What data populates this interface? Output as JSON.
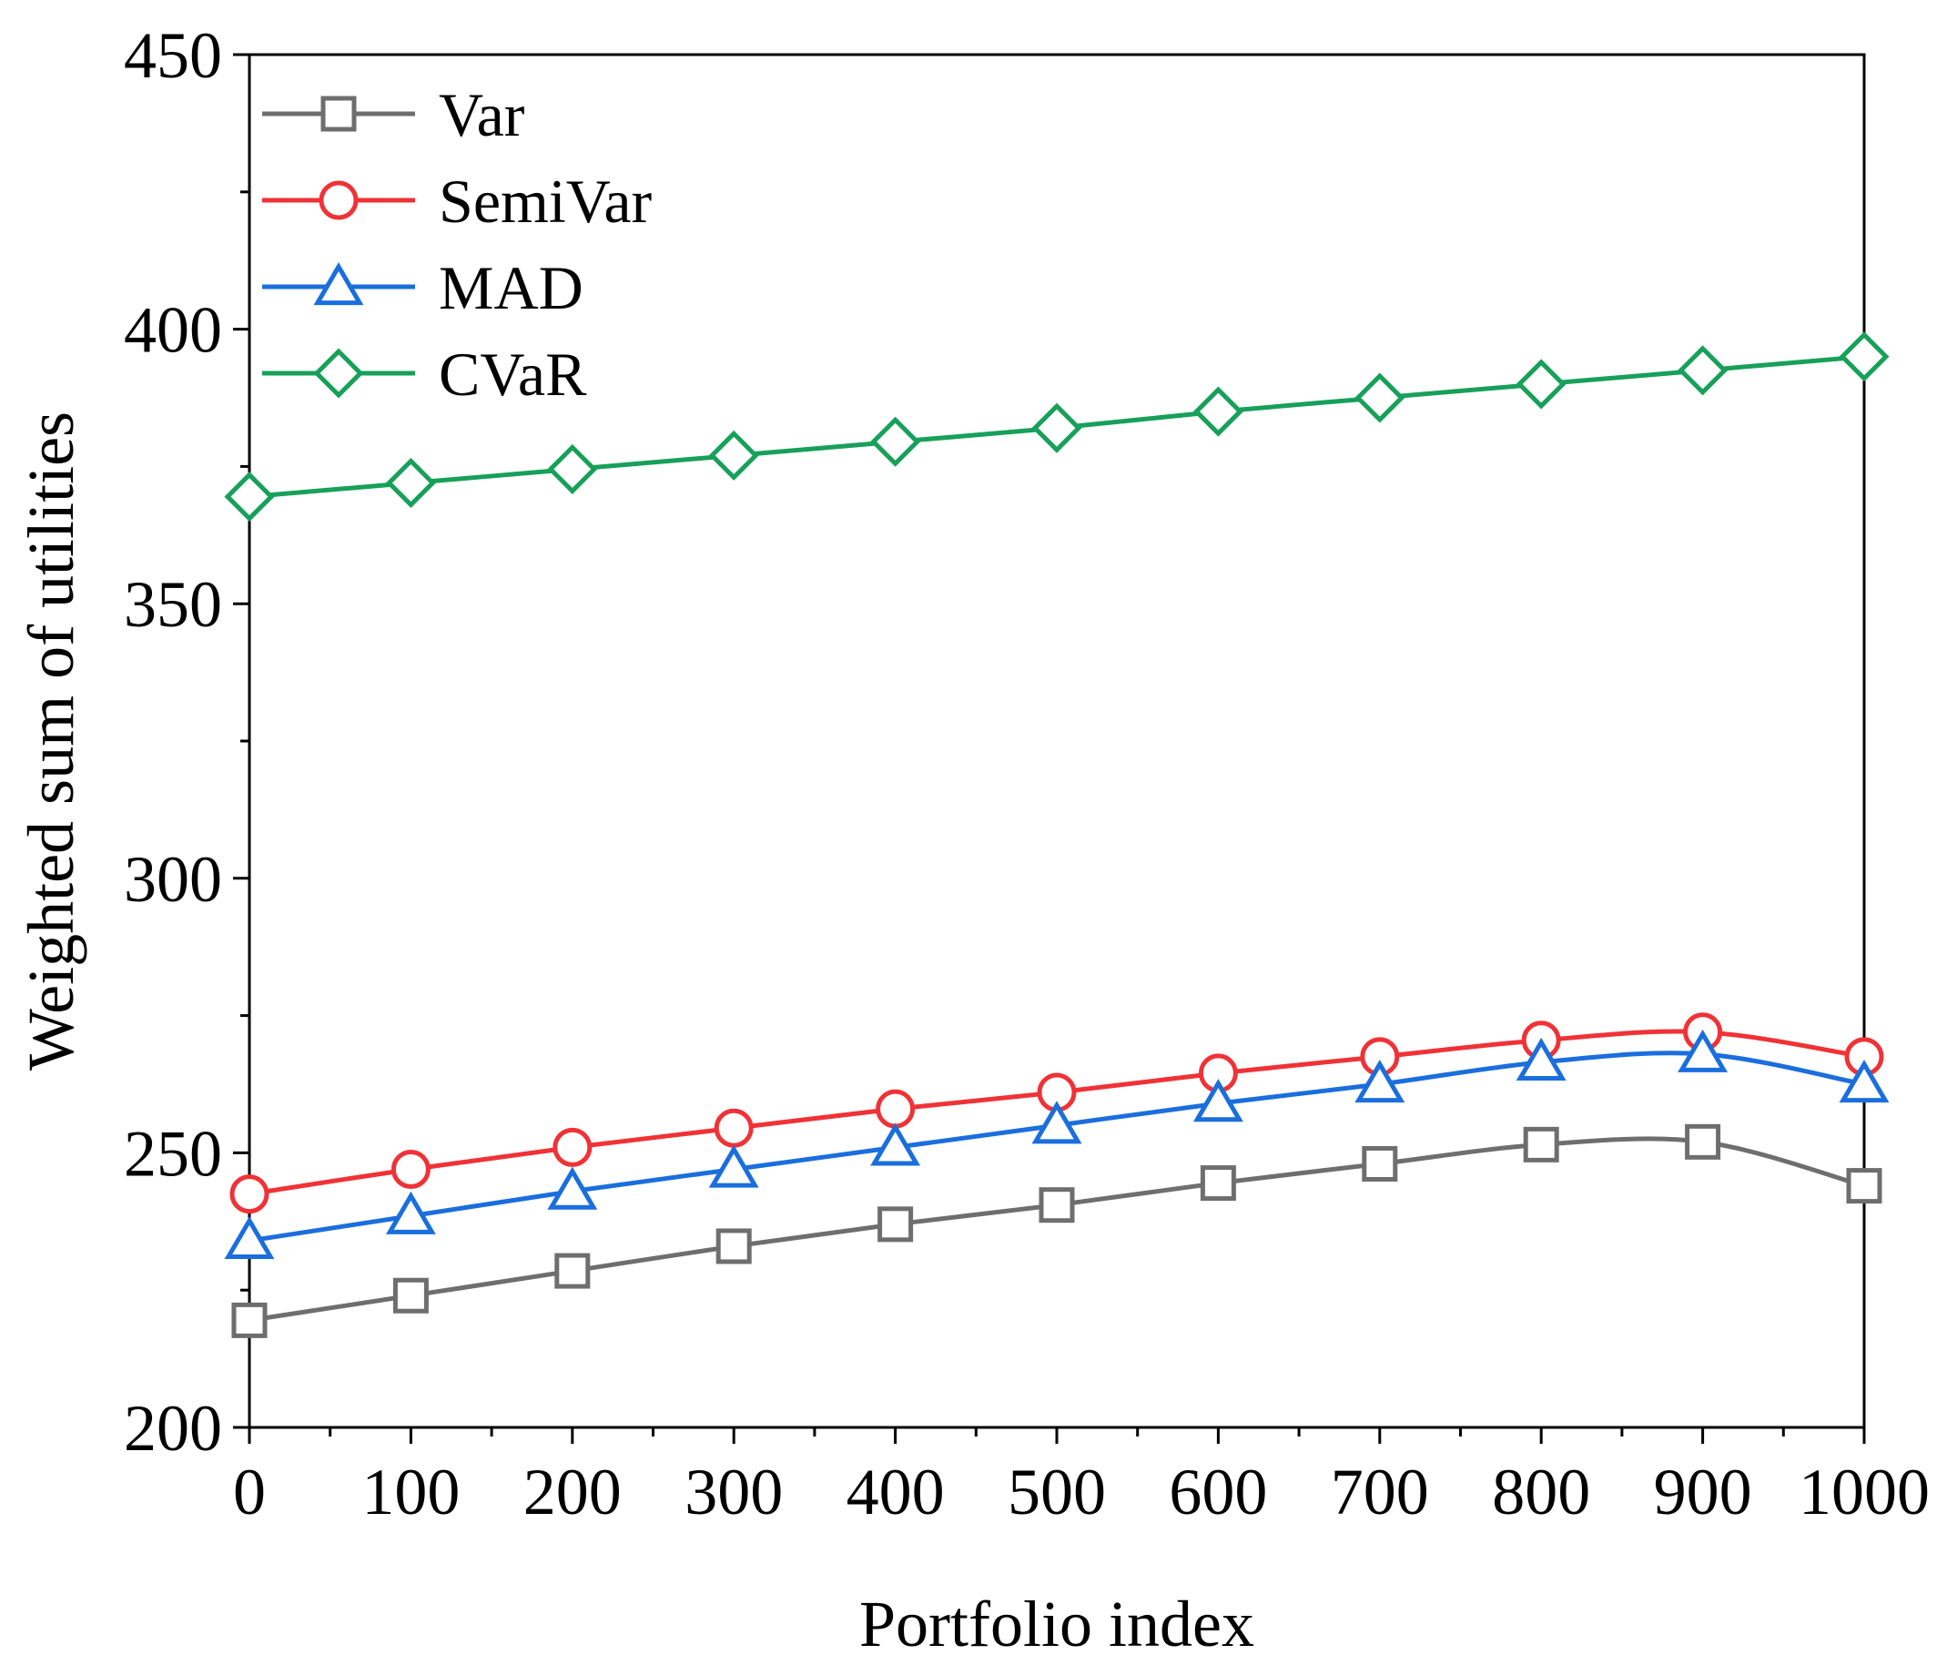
{
  "chart_data": {
    "type": "line",
    "title": "",
    "xlabel": "Portfolio index",
    "ylabel": "Weighted sum of utilities",
    "xlim": [
      0,
      1000
    ],
    "ylim": [
      200,
      450
    ],
    "x_ticks": [
      "0",
      "100",
      "200",
      "300",
      "400",
      "500",
      "600",
      "700",
      "800",
      "900",
      "1000"
    ],
    "y_ticks": [
      "200",
      "250",
      "300",
      "350",
      "400",
      "450"
    ],
    "x": [
      0,
      100,
      200,
      300,
      400,
      500,
      600,
      700,
      800,
      900,
      1000
    ],
    "legend_position": "top-left",
    "grid": false,
    "series": [
      {
        "name": "Var",
        "color": "#6e6e6e",
        "marker": "square",
        "values": [
          219.5,
          224,
          228.5,
          233,
          237,
          240.5,
          244.5,
          248,
          251.5,
          252,
          244
        ]
      },
      {
        "name": "SemiVar",
        "color": "#f03236",
        "marker": "circle",
        "values": [
          242.5,
          247,
          251,
          254.5,
          258,
          261,
          264.5,
          267.5,
          270.5,
          272,
          267.5
        ]
      },
      {
        "name": "MAD",
        "color": "#1a6ede",
        "marker": "triangle",
        "values": [
          234,
          238.5,
          243,
          247,
          251,
          255,
          259,
          262.5,
          266.5,
          268,
          262.5
        ]
      },
      {
        "name": "CVaR",
        "color": "#17a05a",
        "marker": "diamond",
        "values": [
          369.5,
          372,
          374.5,
          377,
          379.5,
          382,
          385,
          387.5,
          390,
          392.5,
          395
        ]
      }
    ]
  }
}
